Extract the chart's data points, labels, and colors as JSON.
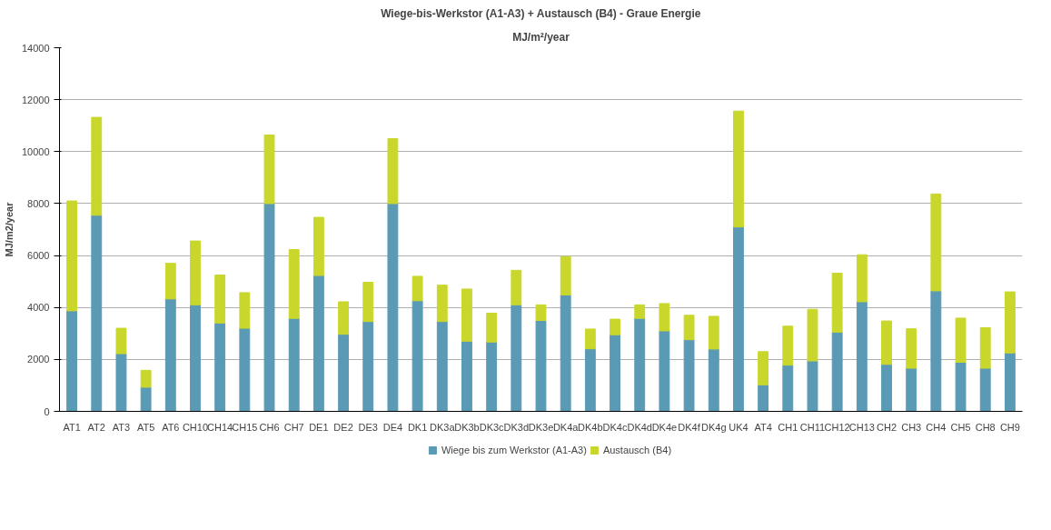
{
  "chart_data": {
    "type": "bar",
    "stacked": true,
    "title": "Wiege-bis-Werkstor (A1-A3) + Austausch (B4) - Graue Energie",
    "subtitle": "MJ/m²/year",
    "ylabel": "MJ/m2/year",
    "categories": [
      "AT1",
      "AT2",
      "AT3",
      "AT5",
      "AT6",
      "CH10",
      "CH14",
      "CH15",
      "CH6",
      "CH7",
      "DE1",
      "DE2",
      "DE3",
      "DE4",
      "DK1",
      "DK3a",
      "DK3b",
      "DK3c",
      "DK3d",
      "DK3e",
      "DK4a",
      "DK4b",
      "DK4c",
      "DK4d",
      "DK4e",
      "DK4f",
      "DK4g",
      "UK4",
      "AT4",
      "CH1",
      "CH11",
      "CH12",
      "CH13",
      "CH2",
      "CH3",
      "CH4",
      "CH5",
      "CH8",
      "CH9"
    ],
    "series": [
      {
        "name": "Wiege bis zum Werkstor (A1-A3)",
        "color": "#5b9ab5",
        "values": [
          3870,
          7550,
          2220,
          930,
          4330,
          4100,
          3400,
          3200,
          8000,
          3580,
          5230,
          2970,
          3460,
          8000,
          4260,
          3460,
          2700,
          2670,
          4100,
          3500,
          4480,
          2410,
          2950,
          3580,
          3100,
          2760,
          2400,
          7100,
          1020,
          1780,
          1940,
          3050,
          4220,
          1810,
          1660,
          4640,
          1890,
          1660,
          2250
        ]
      },
      {
        "name": "Austausch (B4)",
        "color": "#c9d72c",
        "values": [
          4230,
          3770,
          980,
          650,
          1370,
          2460,
          1850,
          1370,
          2640,
          2650,
          2240,
          1250,
          1510,
          2500,
          940,
          1400,
          2010,
          1110,
          1330,
          600,
          1480,
          760,
          600,
          520,
          1050,
          940,
          1260,
          4460,
          1280,
          1500,
          1990,
          2270,
          1810,
          1670,
          1520,
          3730,
          1700,
          1560,
          2350
        ]
      }
    ],
    "ylim": [
      0,
      14000
    ],
    "yticks": [
      0,
      2000,
      4000,
      6000,
      8000,
      10000,
      12000,
      14000
    ],
    "grid": "y",
    "legend": "bottom"
  }
}
